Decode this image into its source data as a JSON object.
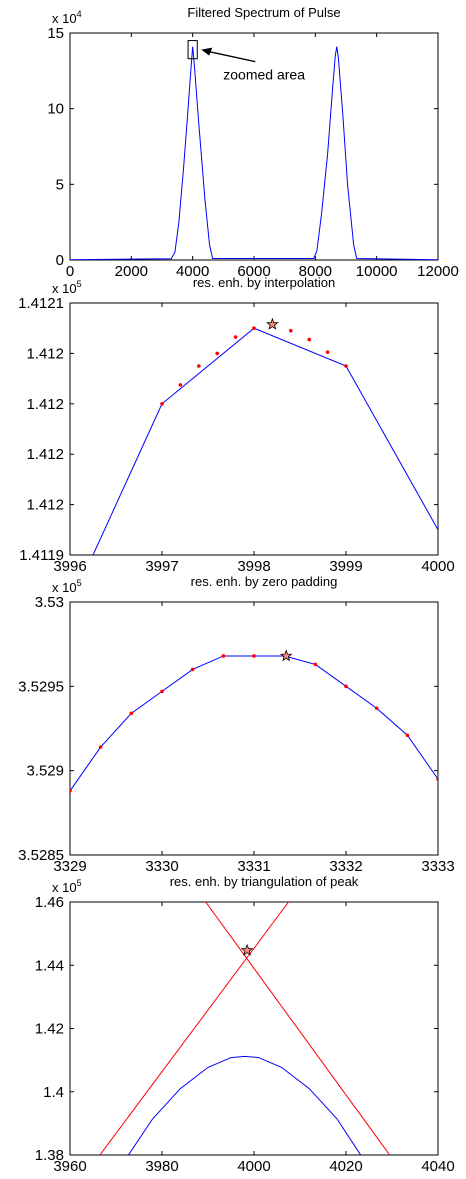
{
  "chart_data": [
    {
      "type": "line",
      "title": "Filtered Spectrum of Pulse",
      "y_multiplier": {
        "base": "x 10",
        "exp": "4"
      },
      "xlim": [
        0,
        12000
      ],
      "ylim": [
        0,
        15
      ],
      "x_ticks": [
        0,
        2000,
        4000,
        6000,
        8000,
        10000,
        12000
      ],
      "y_ticks": [
        0,
        5,
        10,
        15
      ],
      "x_tick_labels": [
        "0",
        "2000",
        "4000",
        "6000",
        "8000",
        "10000",
        "12000"
      ],
      "y_tick_labels": [
        "0",
        "5",
        "10",
        "15"
      ],
      "grid": false,
      "series": [
        {
          "color": "#0000ff",
          "x": [
            0,
            3300,
            3420,
            3550,
            3700,
            3850,
            3950,
            4000,
            4050,
            4200,
            4400,
            4550,
            4650,
            7950,
            8050,
            8200,
            8400,
            8550,
            8650,
            8700,
            8750,
            8900,
            9050,
            9250,
            9350,
            12000
          ],
          "y": [
            0.02,
            0.08,
            0.5,
            2.5,
            6.0,
            10.0,
            12.8,
            14.1,
            13.0,
            9.0,
            4.0,
            1.0,
            0.1,
            0.1,
            0.6,
            3.0,
            7.0,
            11.0,
            13.5,
            14.1,
            13.4,
            9.5,
            5.0,
            1.0,
            0.1,
            0.02
          ]
        }
      ],
      "annotations": [
        {
          "text": "zoomed area",
          "box_x": [
            3850,
            4150
          ],
          "box_y": [
            13.3,
            14.5
          ]
        }
      ]
    },
    {
      "type": "line",
      "title": "res. enh. by interpolation",
      "y_multiplier": {
        "base": "x 10",
        "exp": "5"
      },
      "xlim": [
        3996,
        4000
      ],
      "ylim": [
        1.41191,
        1.41211
      ],
      "x_ticks": [
        3996,
        3997,
        3998,
        3999,
        4000
      ],
      "y_ticks": [
        1.41191,
        1.41195,
        1.41199,
        1.41203,
        1.41207,
        1.41211
      ],
      "x_tick_labels": [
        "3996",
        "3997",
        "3998",
        "3999",
        "4000"
      ],
      "y_tick_labels": [
        "1.4119",
        "1.412",
        "1.412",
        "1.412",
        "1.412",
        "1.4121"
      ],
      "grid": false,
      "series": [
        {
          "color": "#0000ff",
          "x": [
            3996,
            3997,
            3998,
            3999,
            4000
          ],
          "y": [
            1.41187,
            1.41203,
            1.41209,
            1.41206,
            1.41193
          ]
        }
      ],
      "markers": {
        "color": "#ff0000",
        "x": [
          3997,
          3997.2,
          3997.4,
          3997.6,
          3997.8,
          3998,
          3998.2,
          3998.4,
          3998.6,
          3998.8,
          3999
        ],
        "y": [
          1.41203,
          1.412045,
          1.41206,
          1.41207,
          1.412083,
          1.41209,
          1.412093,
          1.412088,
          1.412081,
          1.412071,
          1.41206
        ]
      },
      "peak": {
        "x": 3998.2,
        "y": 1.412093
      }
    },
    {
      "type": "line",
      "title": "res. enh. by zero padding",
      "y_multiplier": {
        "base": "x 10",
        "exp": "5"
      },
      "xlim": [
        3329,
        3333
      ],
      "ylim": [
        3.5285,
        3.53
      ],
      "x_ticks": [
        3329,
        3330,
        3331,
        3332,
        3333
      ],
      "y_ticks": [
        3.5285,
        3.529,
        3.5295,
        3.53
      ],
      "x_tick_labels": [
        "3329",
        "3330",
        "3331",
        "3332",
        "3333"
      ],
      "y_tick_labels": [
        "3.5285",
        "3.529",
        "3.5295",
        "3.53"
      ],
      "grid": false,
      "series": [
        {
          "color": "#0000ff",
          "x": [
            3329,
            3329.333,
            3329.667,
            3330,
            3330.333,
            3330.667,
            3331,
            3331.333,
            3331.667,
            3332,
            3332.333,
            3332.667,
            3333
          ],
          "y": [
            3.52888,
            3.52914,
            3.52934,
            3.52947,
            3.5296,
            3.52968,
            3.52968,
            3.52968,
            3.52963,
            3.5295,
            3.52937,
            3.52921,
            3.52895
          ]
        }
      ],
      "markers": {
        "color": "#ff0000",
        "x": [
          3329,
          3329.333,
          3329.667,
          3330,
          3330.333,
          3330.667,
          3331,
          3331.333,
          3331.667,
          3332,
          3332.333,
          3332.667,
          3333
        ],
        "y": [
          3.52888,
          3.52914,
          3.52934,
          3.52947,
          3.5296,
          3.52968,
          3.52968,
          3.52968,
          3.52963,
          3.5295,
          3.52937,
          3.52921,
          3.52895
        ]
      },
      "peak": {
        "x": 3331.35,
        "y": 3.52968
      }
    },
    {
      "type": "line",
      "title": "res. enh. by triangulation of peak",
      "y_multiplier": {
        "base": "x 10",
        "exp": "5"
      },
      "xlim": [
        3960,
        4040
      ],
      "ylim": [
        1.38,
        1.46
      ],
      "x_ticks": [
        3960,
        3980,
        4000,
        4020,
        4040
      ],
      "y_ticks": [
        1.38,
        1.4,
        1.42,
        1.44,
        1.46
      ],
      "x_tick_labels": [
        "3960",
        "3980",
        "4000",
        "4020",
        "4040"
      ],
      "y_tick_labels": [
        "1.38",
        "1.4",
        "1.42",
        "1.44",
        "1.46"
      ],
      "grid": false,
      "series": [
        {
          "color": "#0000ff",
          "x": [
            3972.7,
            3978,
            3984,
            3990,
            3995,
            3998,
            4001,
            4006,
            4012,
            4018,
            4023.2
          ],
          "y": [
            1.38,
            1.3915,
            1.401,
            1.4077,
            1.4108,
            1.4112,
            1.4108,
            1.4077,
            1.401,
            1.3915,
            1.38
          ]
        },
        {
          "color": "#ff0000",
          "x": [
            3966.5,
            4007.5
          ],
          "y": [
            1.38,
            1.46
          ]
        },
        {
          "color": "#ff0000",
          "x": [
            3989.5,
            4029.5
          ],
          "y": [
            1.46,
            1.38
          ]
        }
      ],
      "peak": {
        "x": 3998.5,
        "y": 1.4447
      }
    }
  ]
}
